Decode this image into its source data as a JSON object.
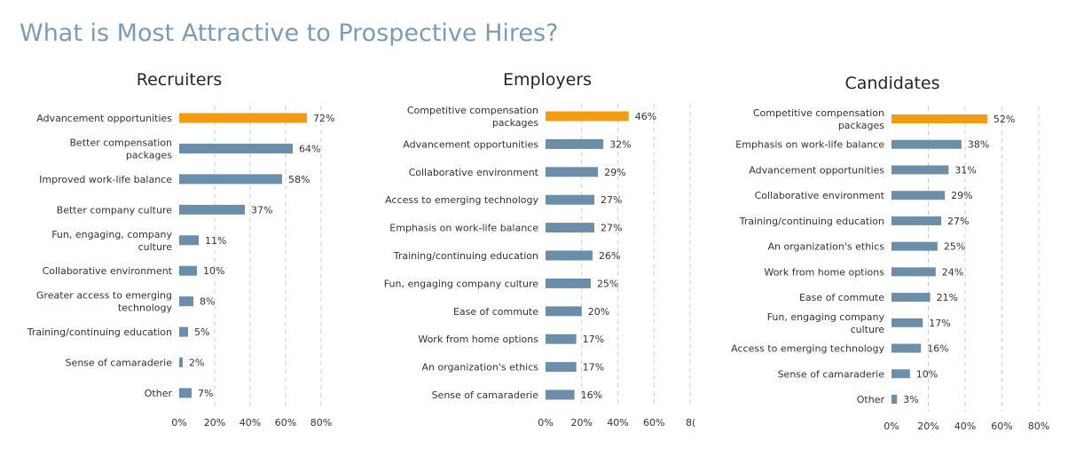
{
  "title": "What is Most Attractive to Prospective Hires?",
  "colors": {
    "highlight": "#f39c12",
    "bar": "#6b8fab",
    "title": "#7b9cb7"
  },
  "chart_data": [
    {
      "type": "bar",
      "orientation": "horizontal",
      "title": "Recruiters",
      "categories": [
        "Advancement opportunities",
        "Better compensation packages",
        "Improved work-life balance",
        "Better company culture",
        "Fun, engaging, company culture",
        "Collaborative environment",
        "Greater access to emerging technology",
        "Training/continuing education",
        "Sense of camaraderie",
        "Other"
      ],
      "category_lines": [
        [
          "Advancement opportunities"
        ],
        [
          "Better compensation",
          "packages"
        ],
        [
          "Improved work-life balance"
        ],
        [
          "Better company culture"
        ],
        [
          "Fun, engaging, company",
          "culture"
        ],
        [
          "Collaborative environment"
        ],
        [
          "Greater access to emerging",
          "technology"
        ],
        [
          "Training/continuing education"
        ],
        [
          "Sense of camaraderie"
        ],
        [
          "Other"
        ]
      ],
      "values": [
        72,
        64,
        58,
        37,
        11,
        10,
        8,
        5,
        2,
        7
      ],
      "labels": [
        "72%",
        "64%",
        "58%",
        "37%",
        "11%",
        "10%",
        "8%",
        "5%",
        "2%",
        "7%"
      ],
      "highlight_index": 0,
      "xlim": [
        0,
        80
      ],
      "xticks": [
        "0%",
        "20%",
        "40%",
        "60%",
        "80%"
      ],
      "grid": true
    },
    {
      "type": "bar",
      "orientation": "horizontal",
      "title": "Employers",
      "categories": [
        "Competitive compensation packages",
        "Advancement opportunities",
        "Collaborative environment",
        "Access to emerging technology",
        "Emphasis on work-life balance",
        "Training/continuing education",
        "Fun, engaging company culture",
        "Ease of commute",
        "Work from home options",
        "An organization's ethics",
        "Sense of camaraderie"
      ],
      "category_lines": [
        [
          "Competitive compensation",
          "packages"
        ],
        [
          "Advancement opportunities"
        ],
        [
          "Collaborative environment"
        ],
        [
          "Access to emerging technology"
        ],
        [
          "Emphasis on work-life balance"
        ],
        [
          "Training/continuing education"
        ],
        [
          "Fun, engaging company culture"
        ],
        [
          "Ease of commute"
        ],
        [
          "Work from home options"
        ],
        [
          "An organization's ethics"
        ],
        [
          "Sense of camaraderie"
        ]
      ],
      "values": [
        46,
        32,
        29,
        27,
        27,
        26,
        25,
        20,
        17,
        17,
        16
      ],
      "labels": [
        "46%",
        "32%",
        "29%",
        "27%",
        "27%",
        "26%",
        "25%",
        "20%",
        "17%",
        "17%",
        "16%"
      ],
      "highlight_index": 0,
      "xlim": [
        0,
        80
      ],
      "xticks": [
        "0%",
        "20%",
        "40%",
        "60%",
        "8("
      ],
      "grid": true
    },
    {
      "type": "bar",
      "orientation": "horizontal",
      "title": "Candidates",
      "categories": [
        "Competitive compensation packages",
        "Emphasis on work-life balance",
        "Advancement opportunities",
        "Collaborative environment",
        "Training/continuing education",
        "An organization's ethics",
        "Work from home options",
        "Ease of commute",
        "Fun, engaging company culture",
        "Access to emerging technology",
        "Sense of camaraderie",
        "Other"
      ],
      "category_lines": [
        [
          "Competitive compensation",
          "packages"
        ],
        [
          "Emphasis on work-life balance"
        ],
        [
          "Advancement opportunities"
        ],
        [
          "Collaborative environment"
        ],
        [
          "Training/continuing education"
        ],
        [
          "An organization's ethics"
        ],
        [
          "Work from home options"
        ],
        [
          "Ease of commute"
        ],
        [
          "Fun, engaging company",
          "culture"
        ],
        [
          "Access to emerging technology"
        ],
        [
          "Sense of camaraderie"
        ],
        [
          "Other"
        ]
      ],
      "values": [
        52,
        38,
        31,
        29,
        27,
        25,
        24,
        21,
        17,
        16,
        10,
        3
      ],
      "labels": [
        "52%",
        "38%",
        "31%",
        "29%",
        "27%",
        "25%",
        "24%",
        "21%",
        "17%",
        "16%",
        "10%",
        "3%"
      ],
      "highlight_index": 0,
      "xlim": [
        0,
        80
      ],
      "xticks": [
        "0%",
        "20%",
        "40%",
        "60%",
        "80%"
      ],
      "grid": true
    }
  ]
}
